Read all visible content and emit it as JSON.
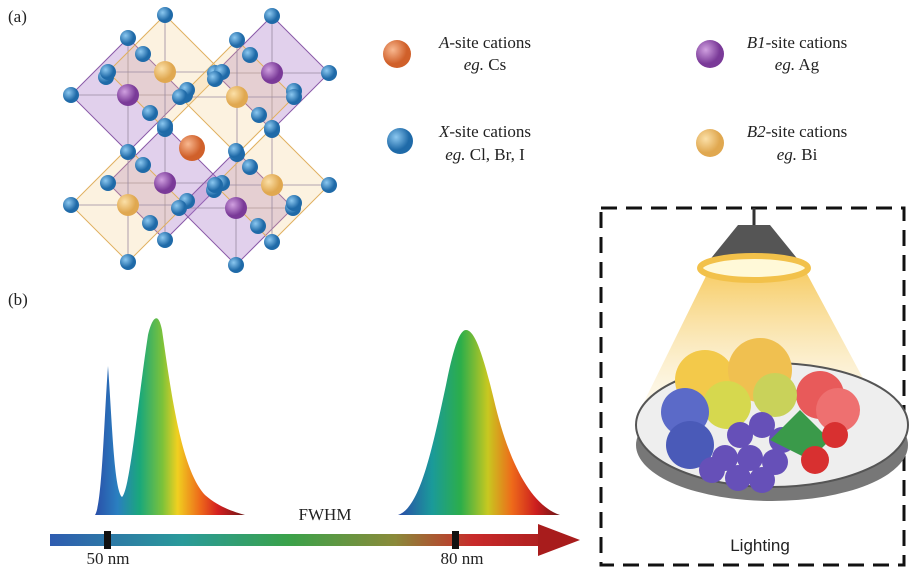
{
  "panel_a": {
    "label": "(a)",
    "legend": [
      {
        "symbol": "A",
        "text": "-site cations",
        "eg": "eg.",
        "example": " Cs"
      },
      {
        "symbol": "B1",
        "text": "-site cations",
        "eg": "eg.",
        "example": " Ag"
      },
      {
        "symbol": "X",
        "text": "-site cations",
        "eg": "eg.",
        "example": " Cl, Br, I"
      },
      {
        "symbol": "B2",
        "text": "-site cations",
        "eg": "eg.",
        "example": " Bi"
      }
    ]
  },
  "panel_b": {
    "label": "(b)",
    "axis_label": "FWHM",
    "marks": [
      "50 nm",
      "80 nm"
    ],
    "box_label": "Lighting"
  }
}
